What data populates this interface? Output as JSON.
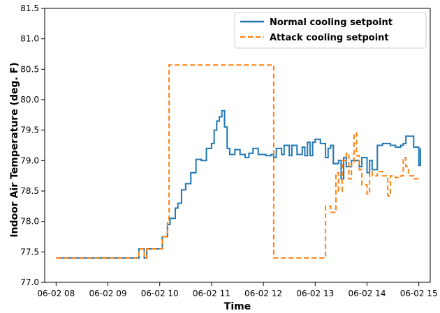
{
  "chart_data": {
    "type": "line",
    "title": "",
    "xlabel": "Time",
    "ylabel": "Indoor Air Temperature (deg. F)",
    "x_ticks": [
      {
        "hour": 8,
        "label": "06-02 08"
      },
      {
        "hour": 9,
        "label": "06-02 09"
      },
      {
        "hour": 10,
        "label": "06-02 10"
      },
      {
        "hour": 11,
        "label": "06-02 11"
      },
      {
        "hour": 12,
        "label": "06-02 12"
      },
      {
        "hour": 13,
        "label": "06-02 13"
      },
      {
        "hour": 14,
        "label": "06-02 14"
      },
      {
        "hour": 15,
        "label": "06-02 15"
      }
    ],
    "y_ticks": [
      {
        "value": 77.0,
        "label": "77.0"
      },
      {
        "value": 77.5,
        "label": "77.5"
      },
      {
        "value": 78.0,
        "label": "78.0"
      },
      {
        "value": 78.5,
        "label": "78.5"
      },
      {
        "value": 79.0,
        "label": "79.0"
      },
      {
        "value": 79.5,
        "label": "79.5"
      },
      {
        "value": 80.0,
        "label": "80.0"
      },
      {
        "value": 80.5,
        "label": "80.5"
      },
      {
        "value": 81.0,
        "label": "81.0"
      },
      {
        "value": 81.5,
        "label": "81.5"
      }
    ],
    "xlim": [
      7.78,
      15.22
    ],
    "ylim": [
      77.0,
      81.5
    ],
    "grid": false,
    "legend_position": "top-right",
    "series": [
      {
        "name": "Normal cooling setpoint",
        "color": "#1f77b4",
        "style": "solid",
        "x": [
          8.0,
          9.6,
          9.7,
          9.75,
          9.85,
          10.05,
          10.15,
          10.2,
          10.3,
          10.35,
          10.42,
          10.5,
          10.6,
          10.7,
          10.8,
          10.9,
          11.0,
          11.05,
          11.1,
          11.15,
          11.2,
          11.25,
          11.3,
          11.35,
          11.45,
          11.55,
          11.65,
          11.72,
          11.8,
          11.9,
          12.0,
          12.05,
          12.15,
          12.2,
          12.25,
          12.35,
          12.4,
          12.5,
          12.55,
          12.65,
          12.75,
          12.8,
          12.85,
          12.9,
          12.95,
          13.0,
          13.1,
          13.2,
          13.25,
          13.3,
          13.35,
          13.45,
          13.5,
          13.55,
          13.6,
          13.7,
          13.8,
          13.85,
          13.9,
          14.0,
          14.05,
          14.1,
          14.2,
          14.3,
          14.45,
          14.55,
          14.65,
          14.7,
          14.75,
          14.9,
          15.0
        ],
        "y": [
          77.4,
          77.55,
          77.4,
          77.55,
          77.55,
          77.75,
          77.95,
          78.05,
          78.22,
          78.3,
          78.52,
          78.62,
          78.8,
          79.02,
          79.0,
          79.2,
          79.28,
          79.5,
          79.65,
          79.72,
          79.82,
          79.55,
          79.2,
          79.1,
          79.18,
          79.1,
          79.05,
          79.12,
          79.2,
          79.1,
          79.1,
          79.08,
          79.1,
          79.05,
          79.2,
          79.1,
          79.25,
          79.08,
          79.25,
          79.1,
          79.22,
          79.08,
          79.3,
          79.08,
          79.3,
          79.35,
          79.28,
          79.05,
          79.2,
          79.25,
          78.95,
          79.0,
          78.7,
          79.05,
          78.9,
          79.0,
          79.0,
          78.9,
          79.05,
          78.8,
          79.0,
          78.85,
          79.25,
          79.28,
          79.25,
          79.22,
          79.25,
          79.28,
          79.4,
          79.22,
          78.92
        ],
        "end_x": 15.03,
        "end_y": 79.2
      },
      {
        "name": "Attack cooling setpoint",
        "color": "#ff7f0e",
        "style": "dashed",
        "x": [
          8.0,
          9.6,
          9.7,
          9.75,
          9.85,
          10.05,
          10.15,
          10.18,
          12.2,
          13.2,
          13.3,
          13.4,
          13.45,
          13.52,
          13.6,
          13.65,
          13.7,
          13.75,
          13.8,
          13.85,
          13.9,
          14.0,
          14.05,
          14.1,
          14.2,
          14.3,
          14.4,
          14.45,
          14.55,
          14.65,
          14.7,
          14.75,
          14.8,
          14.9
        ],
        "y": [
          77.4,
          77.55,
          77.4,
          77.55,
          77.55,
          77.75,
          77.98,
          80.57,
          77.4,
          78.25,
          78.15,
          78.8,
          78.5,
          79.0,
          79.12,
          78.7,
          78.95,
          79.45,
          79.08,
          78.85,
          78.6,
          78.45,
          78.82,
          78.75,
          78.82,
          78.75,
          78.42,
          78.75,
          78.72,
          78.75,
          79.05,
          78.9,
          78.75,
          78.7
        ],
        "end_x": 15.03,
        "end_y": 78.72
      }
    ]
  }
}
